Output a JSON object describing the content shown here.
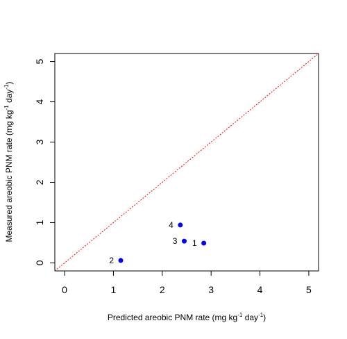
{
  "chart_data": {
    "type": "scatter",
    "title": "",
    "xlabel_main": "Predicted areobic PNM rate (mg kg",
    "xlabel_sup1": "-1",
    "xlabel_mid": " day",
    "xlabel_sup2": "-1",
    "xlabel_end": ")",
    "ylabel_main": "Measured areobic PNM rate (mg kg",
    "ylabel_sup1": "-1",
    "ylabel_mid": " day",
    "ylabel_sup2": "-1",
    "ylabel_end": ")",
    "xlim": [
      -0.2,
      5.2
    ],
    "ylim": [
      -0.2,
      5.2
    ],
    "xticks": [
      "0",
      "1",
      "2",
      "3",
      "4",
      "5"
    ],
    "yticks": [
      "0",
      "1",
      "2",
      "3",
      "4",
      "5"
    ],
    "grid": false,
    "reference_line": {
      "type": "y=x",
      "style": "dotted",
      "color": "#ff0000"
    },
    "point_color": "#0000ff",
    "points": [
      {
        "label": "1",
        "x": 2.85,
        "y": 0.49
      },
      {
        "label": "2",
        "x": 1.15,
        "y": 0.06
      },
      {
        "label": "3",
        "x": 2.45,
        "y": 0.54
      },
      {
        "label": "4",
        "x": 2.37,
        "y": 0.94
      }
    ]
  }
}
